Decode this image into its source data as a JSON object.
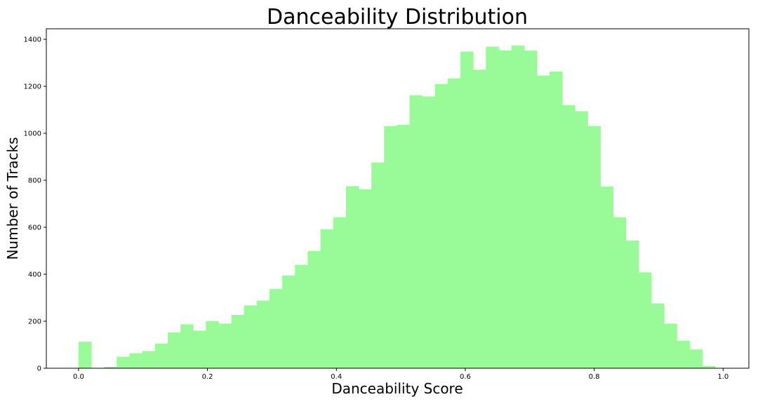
{
  "chart_data": {
    "type": "bar",
    "title": "Danceability Distribution",
    "xlabel": "Danceability Score",
    "ylabel": "Number of Tracks",
    "xlim": [
      -0.05,
      1.04
    ],
    "ylim": [
      0,
      1445
    ],
    "x_ticks": [
      "0.0",
      "0.2",
      "0.4",
      "0.6",
      "0.8",
      "1.0"
    ],
    "y_ticks": [
      "0",
      "200",
      "400",
      "600",
      "800",
      "1000",
      "1200",
      "1400"
    ],
    "bin_start": 0.0,
    "bin_width": 0.01975,
    "values": [
      113,
      0,
      6,
      49,
      64,
      73,
      105,
      152,
      187,
      160,
      200,
      190,
      227,
      268,
      288,
      337,
      395,
      440,
      499,
      592,
      643,
      775,
      762,
      876,
      1030,
      1036,
      1162,
      1157,
      1210,
      1234,
      1348,
      1271,
      1369,
      1353,
      1374,
      1352,
      1246,
      1263,
      1120,
      1094,
      1030,
      773,
      643,
      544,
      408,
      276,
      190,
      117,
      80,
      9
    ],
    "grid": false,
    "legend": "none",
    "bar_color": "#98fb98"
  }
}
